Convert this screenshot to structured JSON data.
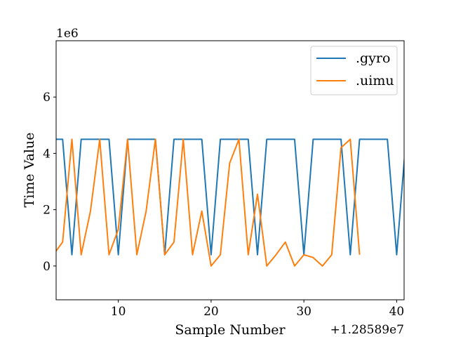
{
  "chart_data": {
    "type": "line",
    "xlabel": "Sample Number",
    "ylabel": "Time Value",
    "x_offset_text": "+1.28589e7",
    "y_scale_text": "1e6",
    "xlim": [
      3.3,
      40.8
    ],
    "ylim": [
      -1.2,
      8.0
    ],
    "y_scale": 1000000,
    "x_ticks": [
      10,
      20,
      30,
      40
    ],
    "y_ticks": [
      0,
      2,
      4,
      6
    ],
    "grid": false,
    "legend_position": "upper right",
    "series": [
      {
        "name": ".gyro",
        "color": "#1f77b4",
        "x": [
          3,
          4,
          5,
          6,
          7,
          8,
          9,
          10,
          11,
          12,
          13,
          14,
          15,
          16,
          17,
          18,
          19,
          20,
          21,
          22,
          23,
          24,
          25,
          26,
          27,
          28,
          29,
          30,
          31,
          32,
          33,
          34,
          35,
          36,
          37,
          38,
          39,
          40,
          41
        ],
        "y": [
          4.5,
          4.5,
          0.4,
          4.5,
          4.5,
          4.5,
          4.5,
          0.4,
          4.5,
          4.5,
          4.5,
          4.5,
          0.4,
          4.5,
          4.5,
          4.5,
          4.5,
          0.4,
          4.5,
          4.5,
          4.5,
          4.5,
          0.4,
          4.5,
          4.5,
          4.5,
          4.5,
          0.4,
          4.5,
          4.5,
          4.5,
          4.5,
          0.4,
          4.5,
          4.5,
          4.5,
          4.5,
          0.4,
          4.5
        ]
      },
      {
        "name": ".uimu",
        "color": "#ff7f0e",
        "x": [
          3,
          4,
          5,
          6,
          7,
          8,
          9,
          10,
          11,
          12,
          13,
          14,
          15,
          16,
          17,
          18,
          19,
          20,
          21,
          22,
          23,
          24,
          25,
          26,
          27,
          28,
          29,
          30,
          31,
          32,
          33,
          34,
          35,
          36
        ],
        "y": [
          0.4,
          0.85,
          4.5,
          0.4,
          1.95,
          4.5,
          0.4,
          1.3,
          4.5,
          0.4,
          1.95,
          4.5,
          0.4,
          0.85,
          4.5,
          0.4,
          1.95,
          0.0,
          0.4,
          3.65,
          4.5,
          0.4,
          2.55,
          0.0,
          0.4,
          0.85,
          0.0,
          0.4,
          0.3,
          0.0,
          0.4,
          4.2,
          4.5,
          0.4
        ]
      }
    ]
  }
}
